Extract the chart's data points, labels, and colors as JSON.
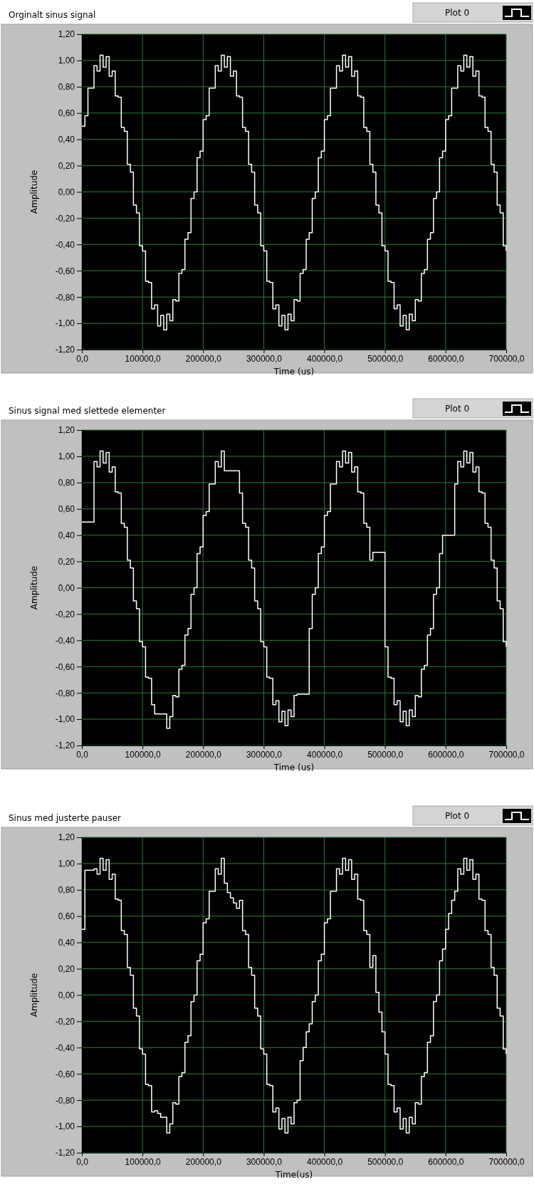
{
  "chart_data": [
    {
      "type": "step",
      "title": "Orginalt sinus signal",
      "xlabel": "Time (us)",
      "ylabel": "Amplitude",
      "grid": true,
      "legend": "top right",
      "x": [
        0,
        5000,
        10000,
        15000,
        20000,
        25000,
        30000,
        35000,
        40000,
        45000,
        50000,
        55000,
        60000,
        65000,
        70000,
        75000,
        80000,
        85000,
        90000,
        95000,
        100000,
        105000,
        110000,
        115000,
        120000,
        125000,
        130000,
        135000,
        140000,
        145000,
        150000,
        155000,
        160000,
        165000,
        170000,
        175000,
        180000,
        185000,
        190000,
        195000,
        200000,
        205000,
        210000,
        215000,
        220000,
        225000,
        230000,
        235000,
        240000,
        245000,
        250000,
        255000,
        260000,
        265000,
        270000,
        275000,
        280000,
        285000,
        290000,
        295000,
        300000,
        305000,
        310000,
        315000,
        320000,
        325000,
        330000,
        335000,
        340000,
        345000,
        350000,
        355000,
        360000,
        365000,
        370000,
        375000,
        380000,
        385000,
        390000,
        395000,
        400000,
        405000,
        410000,
        415000,
        420000,
        425000,
        430000,
        435000,
        440000,
        445000,
        450000,
        455000,
        460000,
        465000,
        470000,
        475000,
        480000,
        485000,
        490000,
        495000,
        500000,
        505000,
        510000,
        515000,
        520000,
        525000,
        530000,
        535000,
        540000,
        545000,
        550000,
        555000,
        560000,
        565000,
        570000,
        575000,
        580000,
        585000,
        590000,
        595000,
        600000,
        605000,
        610000,
        615000,
        620000,
        625000,
        630000,
        635000,
        640000,
        645000,
        650000,
        655000,
        660000,
        665000,
        670000,
        675000,
        680000,
        685000,
        690000,
        695000,
        700000
      ],
      "series": [
        {
          "name": "Plot 0",
          "color": "#ffffff",
          "values": [
            0.5,
            0.58,
            0.79,
            0.79,
            0.96,
            0.92,
            1.04,
            0.95,
            1.03,
            0.88,
            0.92,
            0.73,
            0.72,
            0.49,
            0.46,
            0.21,
            0.15,
            -0.1,
            -0.16,
            -0.41,
            -0.45,
            -0.68,
            -0.69,
            -0.89,
            -0.86,
            -1.02,
            -0.94,
            -1.05,
            -0.93,
            -0.98,
            -0.82,
            -0.83,
            -0.62,
            -0.59,
            -0.36,
            -0.31,
            -0.05,
            0.0,
            0.26,
            0.31,
            0.55,
            0.58,
            0.79,
            0.79,
            0.96,
            0.92,
            1.04,
            0.95,
            1.03,
            0.88,
            0.92,
            0.73,
            0.72,
            0.49,
            0.46,
            0.21,
            0.15,
            -0.1,
            -0.16,
            -0.41,
            -0.45,
            -0.68,
            -0.69,
            -0.89,
            -0.86,
            -1.02,
            -0.94,
            -1.05,
            -0.93,
            -0.98,
            -0.82,
            -0.83,
            -0.62,
            -0.59,
            -0.36,
            -0.31,
            -0.05,
            0.0,
            0.26,
            0.31,
            0.55,
            0.58,
            0.79,
            0.79,
            0.96,
            0.92,
            1.04,
            0.95,
            1.03,
            0.88,
            0.92,
            0.73,
            0.72,
            0.49,
            0.46,
            0.21,
            0.15,
            -0.1,
            -0.16,
            -0.41,
            -0.45,
            -0.68,
            -0.69,
            -0.89,
            -0.86,
            -1.02,
            -0.94,
            -1.05,
            -0.93,
            -0.98,
            -0.82,
            -0.83,
            -0.62,
            -0.59,
            -0.36,
            -0.31,
            -0.05,
            0.0,
            0.26,
            0.31,
            0.55,
            0.58,
            0.79,
            0.79,
            0.96,
            0.92,
            1.04,
            0.95,
            1.03,
            0.88,
            0.92,
            0.73,
            0.72,
            0.49,
            0.46,
            0.21,
            0.15,
            -0.1,
            -0.16,
            -0.41,
            -0.45
          ]
        }
      ],
      "xlim": [
        0,
        700000
      ],
      "ylim": [
        -1.2,
        1.2
      ],
      "xticks": [
        {
          "value": 0,
          "label": "0,0"
        },
        {
          "value": 100000,
          "label": "100000,0"
        },
        {
          "value": 200000,
          "label": "200000,0"
        },
        {
          "value": 300000,
          "label": "300000,0"
        },
        {
          "value": 400000,
          "label": "400000,0"
        },
        {
          "value": 500000,
          "label": "500000,0"
        },
        {
          "value": 600000,
          "label": "600000,0"
        },
        {
          "value": 700000,
          "label": "700000,0"
        }
      ],
      "yticks": [
        {
          "value": 1.2,
          "label": "1,20"
        },
        {
          "value": 1.0,
          "label": "1,00"
        },
        {
          "value": 0.8,
          "label": "0,80"
        },
        {
          "value": 0.6,
          "label": "0,60"
        },
        {
          "value": 0.4,
          "label": "0,40"
        },
        {
          "value": 0.2,
          "label": "0,20"
        },
        {
          "value": 0,
          "label": "0,00"
        },
        {
          "value": -0.2,
          "label": "-0,20"
        },
        {
          "value": -0.4,
          "label": "-0,40"
        },
        {
          "value": -0.6,
          "label": "-0,60"
        },
        {
          "value": -0.8,
          "label": "-0,80"
        },
        {
          "value": -1.0,
          "label": "-1,00"
        },
        {
          "value": -1.2,
          "label": "-1,20"
        }
      ]
    },
    {
      "type": "step",
      "title": "Sinus signal med slettede elementer",
      "xlabel": "Time (us)",
      "ylabel": "Amplitude",
      "grid": true,
      "legend": "top right",
      "x": [
        0,
        5000,
        10000,
        15000,
        20000,
        25000,
        30000,
        35000,
        40000,
        45000,
        50000,
        55000,
        60000,
        65000,
        70000,
        75000,
        80000,
        85000,
        90000,
        95000,
        100000,
        105000,
        110000,
        115000,
        120000,
        125000,
        130000,
        135000,
        140000,
        145000,
        150000,
        155000,
        160000,
        165000,
        170000,
        175000,
        180000,
        185000,
        190000,
        195000,
        200000,
        205000,
        210000,
        215000,
        220000,
        225000,
        230000,
        235000,
        240000,
        245000,
        250000,
        255000,
        260000,
        265000,
        270000,
        275000,
        280000,
        285000,
        290000,
        295000,
        300000,
        305000,
        310000,
        315000,
        320000,
        325000,
        330000,
        335000,
        340000,
        345000,
        350000,
        355000,
        360000,
        365000,
        370000,
        375000,
        380000,
        385000,
        390000,
        395000,
        400000,
        405000,
        410000,
        415000,
        420000,
        425000,
        430000,
        435000,
        440000,
        445000,
        450000,
        455000,
        460000,
        465000,
        470000,
        475000,
        480000,
        485000,
        490000,
        495000,
        500000,
        505000,
        510000,
        515000,
        520000,
        525000,
        530000,
        535000,
        540000,
        545000,
        550000,
        555000,
        560000,
        565000,
        570000,
        575000,
        580000,
        585000,
        590000,
        595000,
        600000,
        605000,
        610000,
        615000,
        620000,
        625000,
        630000,
        635000,
        640000,
        645000,
        650000,
        655000,
        660000,
        665000,
        670000,
        675000,
        680000,
        685000,
        690000,
        695000,
        700000
      ],
      "series": [
        {
          "name": "Plot 0",
          "color": "#ffffff",
          "values": [
            0.5,
            0.5,
            0.5,
            0.5,
            0.96,
            0.92,
            1.04,
            0.95,
            1.03,
            0.88,
            0.92,
            0.73,
            0.72,
            0.49,
            0.46,
            0.21,
            0.15,
            -0.1,
            -0.16,
            -0.41,
            -0.45,
            -0.68,
            -0.69,
            -0.89,
            -0.96,
            -0.96,
            -0.96,
            -0.96,
            -1.07,
            -0.98,
            -0.82,
            -0.83,
            -0.62,
            -0.59,
            -0.36,
            -0.31,
            -0.05,
            0.0,
            0.26,
            0.31,
            0.55,
            0.58,
            0.79,
            0.79,
            0.96,
            0.92,
            1.04,
            0.89,
            0.89,
            0.89,
            0.89,
            0.89,
            0.72,
            0.49,
            0.46,
            0.21,
            0.15,
            -0.1,
            -0.16,
            -0.41,
            -0.45,
            -0.68,
            -0.69,
            -0.89,
            -0.86,
            -1.02,
            -0.94,
            -1.05,
            -0.93,
            -0.98,
            -0.82,
            -0.81,
            -0.81,
            -0.81,
            -0.81,
            -0.31,
            -0.05,
            0.0,
            0.26,
            0.31,
            0.55,
            0.58,
            0.79,
            0.79,
            0.96,
            0.92,
            1.04,
            0.95,
            1.03,
            0.88,
            0.92,
            0.73,
            0.72,
            0.49,
            0.46,
            0.21,
            0.27,
            0.27,
            0.27,
            0.27,
            -0.45,
            -0.68,
            -0.69,
            -0.89,
            -0.86,
            -1.02,
            -0.94,
            -1.05,
            -0.93,
            -0.98,
            -0.82,
            -0.83,
            -0.62,
            -0.59,
            -0.36,
            -0.31,
            -0.05,
            0.0,
            0.26,
            0.4,
            0.4,
            0.4,
            0.4,
            0.79,
            0.96,
            0.92,
            1.04,
            0.95,
            1.03,
            0.88,
            0.92,
            0.73,
            0.72,
            0.49,
            0.46,
            0.21,
            0.15,
            -0.1,
            -0.16,
            -0.41,
            -0.45
          ]
        }
      ],
      "xlim": [
        0,
        700000
      ],
      "ylim": [
        -1.2,
        1.2
      ],
      "xticks": [
        {
          "value": 0,
          "label": "0,0"
        },
        {
          "value": 100000,
          "label": "100000,0"
        },
        {
          "value": 200000,
          "label": "200000,0"
        },
        {
          "value": 300000,
          "label": "300000,0"
        },
        {
          "value": 400000,
          "label": "400000,0"
        },
        {
          "value": 500000,
          "label": "500000,0"
        },
        {
          "value": 600000,
          "label": "600000,0"
        },
        {
          "value": 700000,
          "label": "700000,0"
        }
      ],
      "yticks": [
        {
          "value": 1.2,
          "label": "1,20"
        },
        {
          "value": 1.0,
          "label": "1,00"
        },
        {
          "value": 0.8,
          "label": "0,80"
        },
        {
          "value": 0.6,
          "label": "0,60"
        },
        {
          "value": 0.4,
          "label": "0,40"
        },
        {
          "value": 0.2,
          "label": "0,20"
        },
        {
          "value": 0,
          "label": "0,00"
        },
        {
          "value": -0.2,
          "label": "-0,20"
        },
        {
          "value": -0.4,
          "label": "-0,40"
        },
        {
          "value": -0.6,
          "label": "-0,60"
        },
        {
          "value": -0.8,
          "label": "-0,80"
        },
        {
          "value": -1.0,
          "label": "-1,00"
        },
        {
          "value": -1.2,
          "label": "-1,20"
        }
      ]
    },
    {
      "type": "step",
      "title": "Sinus med justerte pauser",
      "xlabel": "Time(us)",
      "ylabel": "Amplitude",
      "grid": true,
      "legend": "top right",
      "x": [
        0,
        5000,
        10000,
        15000,
        20000,
        25000,
        30000,
        35000,
        40000,
        45000,
        50000,
        55000,
        60000,
        65000,
        70000,
        75000,
        80000,
        85000,
        90000,
        95000,
        100000,
        105000,
        110000,
        115000,
        120000,
        125000,
        130000,
        135000,
        140000,
        145000,
        150000,
        155000,
        160000,
        165000,
        170000,
        175000,
        180000,
        185000,
        190000,
        195000,
        200000,
        205000,
        210000,
        215000,
        220000,
        225000,
        230000,
        235000,
        240000,
        245000,
        250000,
        255000,
        260000,
        265000,
        270000,
        275000,
        280000,
        285000,
        290000,
        295000,
        300000,
        305000,
        310000,
        315000,
        320000,
        325000,
        330000,
        335000,
        340000,
        345000,
        350000,
        355000,
        360000,
        365000,
        370000,
        375000,
        380000,
        385000,
        390000,
        395000,
        400000,
        405000,
        410000,
        415000,
        420000,
        425000,
        430000,
        435000,
        440000,
        445000,
        450000,
        455000,
        460000,
        465000,
        470000,
        475000,
        480000,
        485000,
        490000,
        495000,
        500000,
        505000,
        510000,
        515000,
        520000,
        525000,
        530000,
        535000,
        540000,
        545000,
        550000,
        555000,
        560000,
        565000,
        570000,
        575000,
        580000,
        585000,
        590000,
        595000,
        600000,
        605000,
        610000,
        615000,
        620000,
        625000,
        630000,
        635000,
        640000,
        645000,
        650000,
        655000,
        660000,
        665000,
        670000,
        675000,
        680000,
        685000,
        690000,
        695000,
        700000
      ],
      "series": [
        {
          "name": "Plot 0",
          "color": "#ffffff",
          "values": [
            0.5,
            0.95,
            0.95,
            0.95,
            0.96,
            0.92,
            1.04,
            0.95,
            1.03,
            0.88,
            0.92,
            0.73,
            0.72,
            0.49,
            0.46,
            0.21,
            0.15,
            -0.1,
            -0.16,
            -0.41,
            -0.45,
            -0.68,
            -0.69,
            -0.89,
            -0.88,
            -0.9,
            -0.93,
            -0.93,
            -1.05,
            -0.98,
            -0.82,
            -0.83,
            -0.62,
            -0.59,
            -0.36,
            -0.31,
            -0.05,
            0.0,
            0.26,
            0.31,
            0.55,
            0.58,
            0.79,
            0.79,
            0.96,
            0.92,
            1.04,
            0.85,
            0.78,
            0.74,
            0.7,
            0.66,
            0.72,
            0.49,
            0.46,
            0.21,
            0.15,
            -0.1,
            -0.16,
            -0.41,
            -0.45,
            -0.68,
            -0.69,
            -0.89,
            -0.86,
            -1.02,
            -0.94,
            -1.05,
            -0.93,
            -0.98,
            -0.82,
            -0.8,
            -0.5,
            -0.4,
            -0.28,
            -0.22,
            -0.05,
            0.0,
            0.26,
            0.31,
            0.55,
            0.58,
            0.79,
            0.79,
            0.96,
            0.92,
            1.04,
            0.95,
            1.03,
            0.88,
            0.92,
            0.73,
            0.72,
            0.49,
            0.46,
            0.21,
            0.3,
            0.02,
            -0.13,
            -0.28,
            -0.45,
            -0.68,
            -0.69,
            -0.89,
            -0.86,
            -1.02,
            -0.94,
            -1.05,
            -0.93,
            -0.98,
            -0.82,
            -0.83,
            -0.62,
            -0.59,
            -0.36,
            -0.31,
            -0.05,
            0.0,
            0.26,
            0.35,
            0.5,
            0.62,
            0.72,
            0.79,
            0.96,
            0.92,
            1.04,
            0.95,
            1.03,
            0.88,
            0.92,
            0.73,
            0.72,
            0.49,
            0.46,
            0.21,
            0.15,
            -0.1,
            -0.16,
            -0.41,
            -0.45
          ]
        }
      ],
      "xlim": [
        0,
        700000
      ],
      "ylim": [
        -1.2,
        1.2
      ],
      "xticks": [
        {
          "value": 0,
          "label": "0,0"
        },
        {
          "value": 100000,
          "label": "100000,0"
        },
        {
          "value": 200000,
          "label": "200000,0"
        },
        {
          "value": 300000,
          "label": "300000,0"
        },
        {
          "value": 400000,
          "label": "400000,0"
        },
        {
          "value": 500000,
          "label": "500000,0"
        },
        {
          "value": 600000,
          "label": "600000,0"
        },
        {
          "value": 700000,
          "label": "700000,0"
        }
      ],
      "yticks": [
        {
          "value": 1.2,
          "label": "1,20"
        },
        {
          "value": 1.0,
          "label": "1,00"
        },
        {
          "value": 0.8,
          "label": "0,80"
        },
        {
          "value": 0.6,
          "label": "0,60"
        },
        {
          "value": 0.4,
          "label": "0,40"
        },
        {
          "value": 0.2,
          "label": "0,20"
        },
        {
          "value": 0,
          "label": "0,00"
        },
        {
          "value": -0.2,
          "label": "-0,20"
        },
        {
          "value": -0.4,
          "label": "-0,40"
        },
        {
          "value": -0.6,
          "label": "-0,60"
        },
        {
          "value": -0.8,
          "label": "-0,80"
        },
        {
          "value": -1.0,
          "label": "-1,00"
        },
        {
          "value": -1.2,
          "label": "-1,20"
        }
      ]
    }
  ]
}
